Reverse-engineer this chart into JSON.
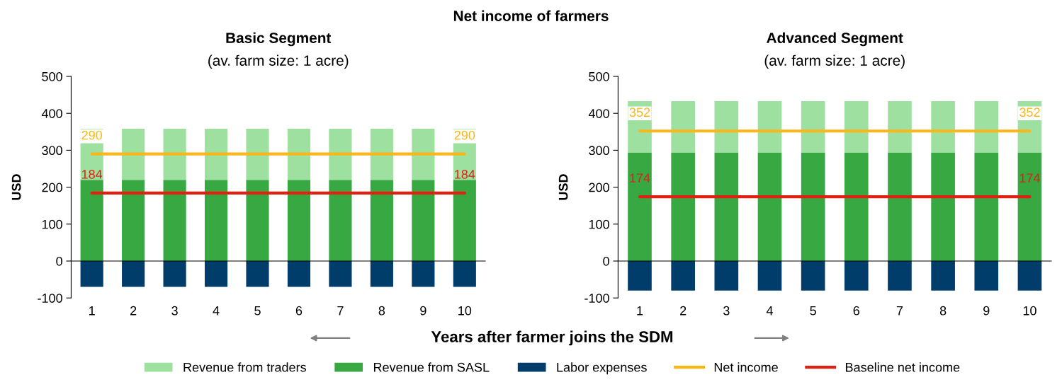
{
  "chart_data": [
    {
      "type": "bar",
      "title": "Basic Segment",
      "subtitle": "(av. farm size: 1 acre)",
      "ylabel": "USD",
      "annotations": [
        "Net income of farmers",
        "Years after farmer joins the SDM"
      ],
      "categories": [
        "1",
        "2",
        "3",
        "4",
        "5",
        "6",
        "7",
        "8",
        "9",
        "10"
      ],
      "stacked": true,
      "ylim": [
        -100,
        500
      ],
      "yticks": [
        -100,
        0,
        100,
        200,
        300,
        400,
        500
      ],
      "legend": "bottom",
      "series": [
        {
          "name": "Revenue from SASL",
          "color": "#38a842",
          "values": [
            220,
            220,
            220,
            220,
            220,
            220,
            220,
            220,
            220,
            220
          ]
        },
        {
          "name": "Revenue from traders",
          "color": "#9de0a0",
          "values": [
            138,
            138,
            138,
            138,
            138,
            138,
            138,
            138,
            138,
            138
          ]
        },
        {
          "name": "Labor expenses",
          "color": "#003d6b",
          "values": [
            -70,
            -70,
            -70,
            -70,
            -70,
            -70,
            -70,
            -70,
            -70,
            -70
          ]
        },
        {
          "name": "Net income",
          "type": "line",
          "color": "#fbb619",
          "values": [
            290,
            290,
            290,
            290,
            290,
            290,
            290,
            290,
            290,
            290
          ],
          "value_labels": [
            "290",
            null,
            null,
            null,
            null,
            null,
            null,
            null,
            null,
            "290"
          ]
        },
        {
          "name": "Baseline net income",
          "type": "line",
          "color": "#e02010",
          "values": [
            184,
            184,
            184,
            184,
            184,
            184,
            184,
            184,
            184,
            184
          ],
          "value_labels": [
            "184",
            null,
            null,
            null,
            null,
            null,
            null,
            null,
            null,
            "184"
          ]
        }
      ]
    },
    {
      "type": "bar",
      "title": "Advanced Segment",
      "subtitle": "(av. farm size: 1 acre)",
      "ylabel": "USD",
      "categories": [
        "1",
        "2",
        "3",
        "4",
        "5",
        "6",
        "7",
        "8",
        "9",
        "10"
      ],
      "stacked": true,
      "ylim": [
        -100,
        500
      ],
      "yticks": [
        -100,
        0,
        100,
        200,
        300,
        400,
        500
      ],
      "series": [
        {
          "color": "#38a842",
          "values": [
            294,
            294,
            294,
            294,
            294,
            294,
            294,
            294,
            294,
            294
          ]
        },
        {
          "color": "#9de0a0",
          "values": [
            139,
            139,
            139,
            139,
            139,
            139,
            139,
            139,
            139,
            139
          ]
        },
        {
          "color": "#003d6b",
          "values": [
            -80,
            -80,
            -80,
            -80,
            -80,
            -80,
            -80,
            -80,
            -80,
            -80
          ]
        },
        {
          "type": "line",
          "color": "#fbb619",
          "values": [
            352,
            352,
            352,
            352,
            352,
            352,
            352,
            352,
            352,
            352
          ],
          "value_labels": [
            "352",
            null,
            null,
            null,
            null,
            null,
            null,
            null,
            null,
            "352"
          ]
        },
        {
          "type": "line",
          "color": "#e02010",
          "values": [
            174,
            174,
            174,
            174,
            174,
            174,
            174,
            174,
            174,
            174
          ],
          "value_labels": [
            "174",
            null,
            null,
            null,
            null,
            null,
            null,
            null,
            null,
            "174"
          ]
        }
      ]
    }
  ]
}
